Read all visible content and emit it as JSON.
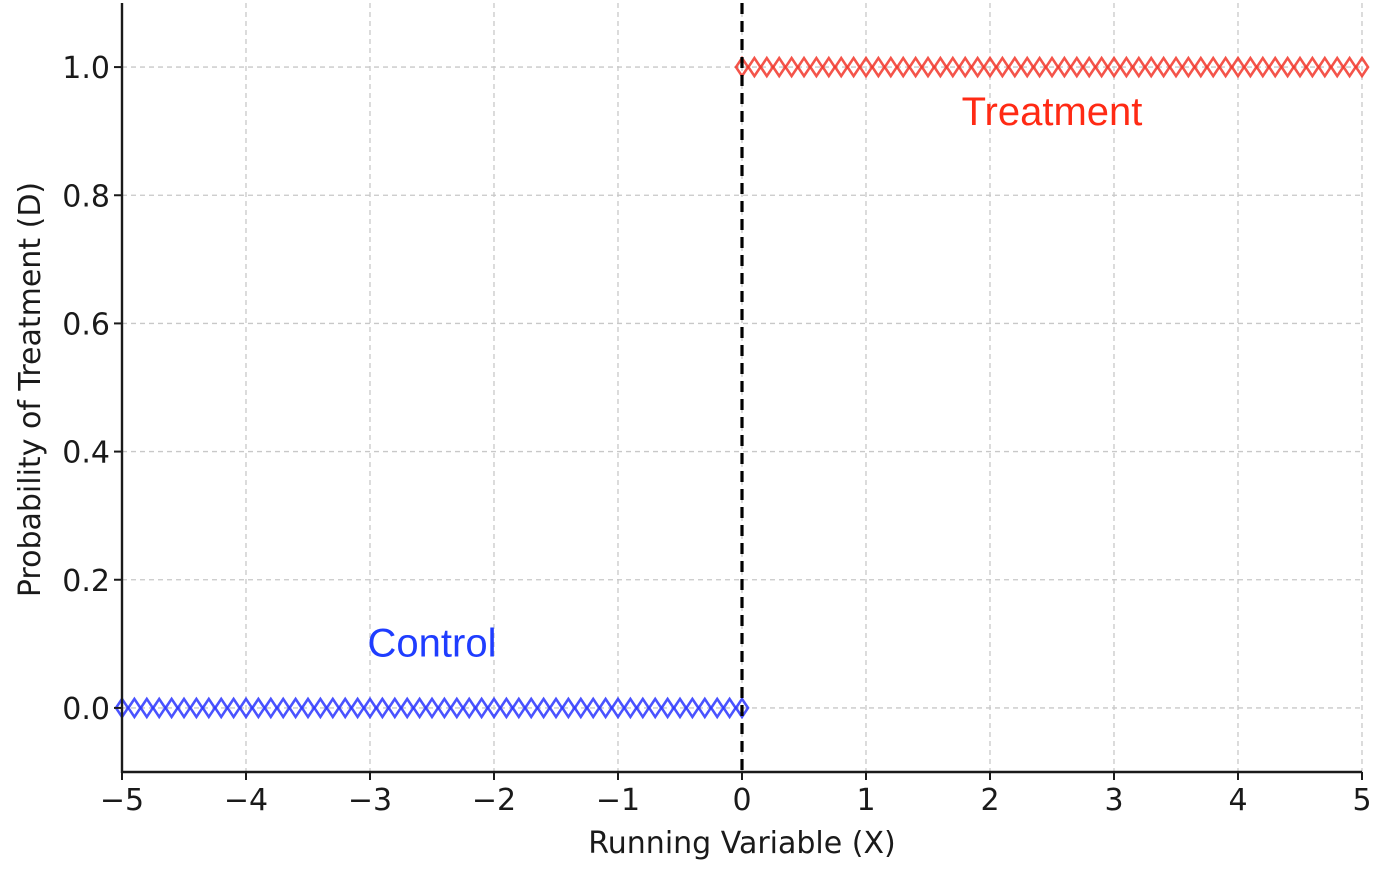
{
  "chart_data": {
    "type": "scatter",
    "title": "",
    "xlabel": "Running Variable (X)",
    "ylabel": "Probability of Treatment (D)",
    "xlim": [
      -5,
      5
    ],
    "ylim": [
      -0.1,
      1.1
    ],
    "xticks": [
      -5,
      -4,
      -3,
      -2,
      -1,
      0,
      1,
      2,
      3,
      4,
      5
    ],
    "xtick_labels": [
      "−5",
      "−4",
      "−3",
      "−2",
      "−1",
      "0",
      "1",
      "2",
      "3",
      "4",
      "5"
    ],
    "yticks": [
      0.0,
      0.2,
      0.4,
      0.6,
      0.8,
      1.0
    ],
    "ytick_labels": [
      "0.0",
      "0.2",
      "0.4",
      "0.6",
      "0.8",
      "1.0"
    ],
    "grid": true,
    "cutoff": 0,
    "series": [
      {
        "label": "Control",
        "color": "#2a35ff",
        "marker": "diamond-open",
        "x_range": [
          -5,
          0
        ],
        "x_step": 0.1,
        "y": 0
      },
      {
        "label": "Treatment",
        "color": "#f2362a",
        "marker": "diamond-open",
        "x_range": [
          0,
          5
        ],
        "x_step": 0.1,
        "y": 1
      }
    ],
    "annotations": [
      {
        "text": "Control",
        "x": -2.5,
        "y": 0.08,
        "color": "#1f3dff"
      },
      {
        "text": "Treatment",
        "x": 2.5,
        "y": 0.91,
        "color": "#ff2a14"
      }
    ]
  }
}
